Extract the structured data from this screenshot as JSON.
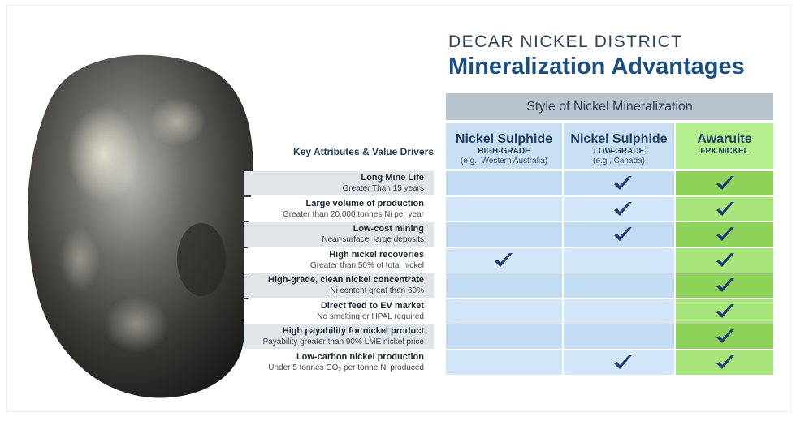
{
  "header": {
    "eyebrow": "DECAR NICKEL DISTRICT",
    "title": "Mineralization Advantages"
  },
  "table": {
    "group_header": "Style of Nickel Mineralization",
    "key_label": "Key Attributes & Value Drivers",
    "columns": [
      {
        "name": "Nickel Sulphide",
        "grade": "HIGH-GRADE",
        "example": "(e.g., Western Australia)"
      },
      {
        "name": "Nickel Sulphide",
        "grade": "LOW-GRADE",
        "example": "(e.g., Canada)"
      },
      {
        "name": "Awaruite",
        "grade": "FPX NICKEL",
        "example": ""
      }
    ],
    "rows": [
      {
        "title": "Long Mine Life",
        "subtitle": "Greater Than 15 years",
        "checks": [
          false,
          true,
          true
        ]
      },
      {
        "title": "Large volume of production",
        "subtitle": "Greater than 20,000 tonnes Ni per year",
        "checks": [
          false,
          true,
          true
        ]
      },
      {
        "title": "Low-cost mining",
        "subtitle": "Near-surface, large deposits",
        "checks": [
          false,
          true,
          true
        ]
      },
      {
        "title": "High nickel recoveries",
        "subtitle": "Greater than 50% of total nickel",
        "checks": [
          true,
          false,
          true
        ]
      },
      {
        "title": "High-grade, clean nickel concentrate",
        "subtitle": "Ni content great than 60%",
        "checks": [
          false,
          false,
          true
        ]
      },
      {
        "title": "Direct feed to EV market",
        "subtitle": "No smelting or HPAL required",
        "checks": [
          false,
          false,
          true
        ]
      },
      {
        "title": "High payability for nickel product",
        "subtitle": "Payability greater than 90% LME nickel price",
        "checks": [
          false,
          false,
          true
        ]
      },
      {
        "title": "Low-carbon nickel production",
        "subtitle": "Under 5 tonnes CO₂ per tonne Ni produced",
        "checks": [
          false,
          true,
          true
        ]
      }
    ]
  },
  "image": {
    "icon": "nickel-nugget-photo"
  },
  "colors": {
    "title": "#1b4f82",
    "check": "#1f3c73",
    "green": "#8fd259",
    "blue": "#c3dcf3"
  }
}
